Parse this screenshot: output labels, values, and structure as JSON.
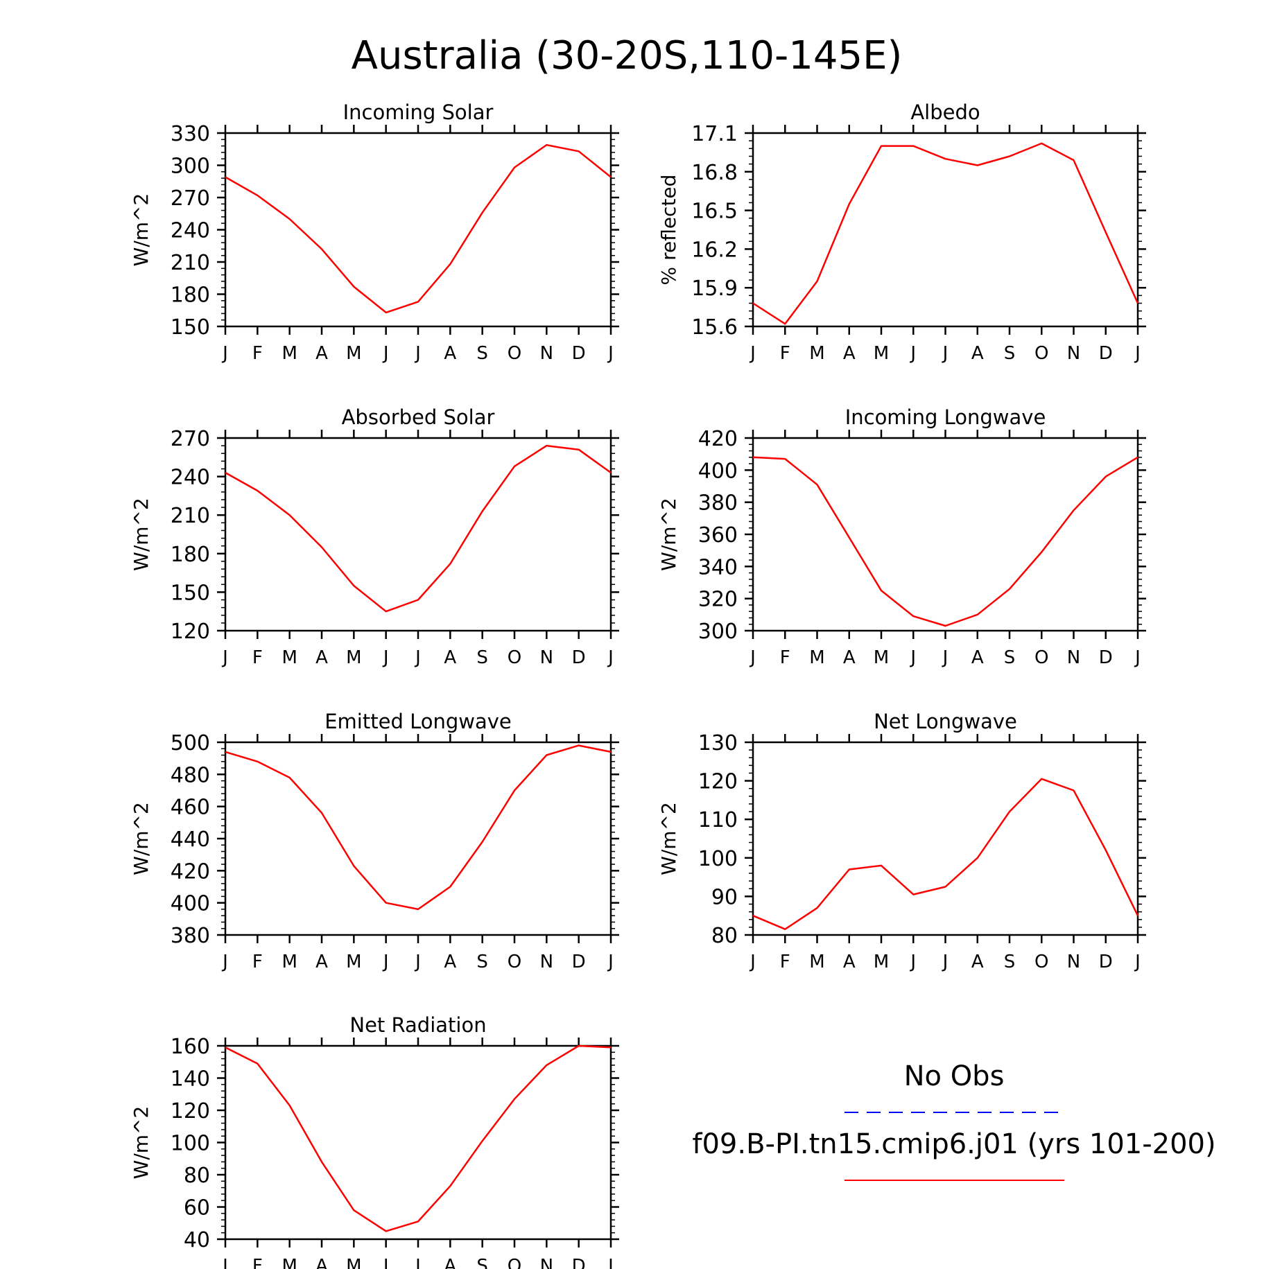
{
  "title": "Australia (30-20S,110-145E)",
  "legend": {
    "obs_label": "No Obs",
    "obs_color": "#0000ff",
    "model_label": "f09.B-PI.tn15.cmip6.j01 (yrs 101-200)",
    "model_color": "#ff0000"
  },
  "chart_data": [
    {
      "type": "line",
      "title": "Incoming Solar",
      "ylabel": "W/m^2",
      "x": [
        "J",
        "F",
        "M",
        "A",
        "M",
        "J",
        "J",
        "A",
        "S",
        "O",
        "N",
        "D",
        "J"
      ],
      "ylim": [
        150,
        330
      ],
      "yticks": [
        150,
        180,
        210,
        240,
        270,
        300,
        330
      ],
      "ytick_labels": [
        "150",
        "180",
        "210",
        "240",
        "270",
        "300",
        "330"
      ],
      "series": [
        {
          "values": [
            289,
            272,
            250,
            222,
            187,
            163,
            173,
            208,
            256,
            298,
            319,
            313,
            289
          ]
        }
      ]
    },
    {
      "type": "line",
      "title": "Albedo",
      "ylabel": "% reflected",
      "x": [
        "J",
        "F",
        "M",
        "A",
        "M",
        "J",
        "J",
        "A",
        "S",
        "O",
        "N",
        "D",
        "J"
      ],
      "ylim": [
        15.6,
        17.1
      ],
      "yticks": [
        15.6,
        15.9,
        16.2,
        16.5,
        16.8,
        17.1
      ],
      "ytick_labels": [
        "15.6",
        "15.9",
        "16.2",
        "16.5",
        "16.8",
        "17.1"
      ],
      "series": [
        {
          "values": [
            15.78,
            15.62,
            15.95,
            16.55,
            17.0,
            17.0,
            16.9,
            16.85,
            16.92,
            17.02,
            16.89,
            16.33,
            15.78
          ]
        }
      ]
    },
    {
      "type": "line",
      "title": "Absorbed Solar",
      "ylabel": "W/m^2",
      "x": [
        "J",
        "F",
        "M",
        "A",
        "M",
        "J",
        "J",
        "A",
        "S",
        "O",
        "N",
        "D",
        "J"
      ],
      "ylim": [
        120,
        270
      ],
      "yticks": [
        120,
        150,
        180,
        210,
        240,
        270
      ],
      "ytick_labels": [
        "120",
        "150",
        "180",
        "210",
        "240",
        "270"
      ],
      "series": [
        {
          "values": [
            243,
            229,
            210,
            185,
            155,
            135,
            144,
            172,
            213,
            248,
            264,
            261,
            243
          ]
        }
      ]
    },
    {
      "type": "line",
      "title": "Incoming Longwave",
      "ylabel": "W/m^2",
      "x": [
        "J",
        "F",
        "M",
        "A",
        "M",
        "J",
        "J",
        "A",
        "S",
        "O",
        "N",
        "D",
        "J"
      ],
      "ylim": [
        300,
        420
      ],
      "yticks": [
        300,
        320,
        340,
        360,
        380,
        400,
        420
      ],
      "ytick_labels": [
        "300",
        "320",
        "340",
        "360",
        "380",
        "400",
        "420"
      ],
      "series": [
        {
          "values": [
            408,
            407,
            391,
            358,
            325,
            309,
            303,
            310,
            326,
            349,
            375,
            396,
            408
          ]
        }
      ]
    },
    {
      "type": "line",
      "title": "Emitted Longwave",
      "ylabel": "W/m^2",
      "x": [
        "J",
        "F",
        "M",
        "A",
        "M",
        "J",
        "J",
        "A",
        "S",
        "O",
        "N",
        "D",
        "J"
      ],
      "ylim": [
        380,
        500
      ],
      "yticks": [
        380,
        400,
        420,
        440,
        460,
        480,
        500
      ],
      "ytick_labels": [
        "380",
        "400",
        "420",
        "440",
        "460",
        "480",
        "500"
      ],
      "series": [
        {
          "values": [
            494,
            488,
            478,
            456,
            423,
            400,
            396,
            410,
            438,
            470,
            492,
            498,
            494
          ]
        }
      ]
    },
    {
      "type": "line",
      "title": "Net Longwave",
      "ylabel": "W/m^2",
      "x": [
        "J",
        "F",
        "M",
        "A",
        "M",
        "J",
        "J",
        "A",
        "S",
        "O",
        "N",
        "D",
        "J"
      ],
      "ylim": [
        80,
        130
      ],
      "yticks": [
        80,
        90,
        100,
        110,
        120,
        130
      ],
      "ytick_labels": [
        "80",
        "90",
        "100",
        "110",
        "120",
        "130"
      ],
      "series": [
        {
          "values": [
            85,
            81.5,
            87,
            97,
            98,
            90.5,
            92.5,
            100,
            112,
            120.5,
            117.5,
            102,
            85
          ]
        }
      ]
    },
    {
      "type": "line",
      "title": "Net Radiation",
      "ylabel": "W/m^2",
      "x": [
        "J",
        "F",
        "M",
        "A",
        "M",
        "J",
        "J",
        "A",
        "S",
        "O",
        "N",
        "D",
        "J"
      ],
      "ylim": [
        40,
        160
      ],
      "yticks": [
        40,
        60,
        80,
        100,
        120,
        140,
        160
      ],
      "ytick_labels": [
        "40",
        "60",
        "80",
        "100",
        "120",
        "140",
        "160"
      ],
      "series": [
        {
          "values": [
            159,
            149,
            123,
            88,
            58,
            45,
            51,
            73,
            101,
            127,
            148,
            160,
            159
          ]
        }
      ]
    }
  ]
}
